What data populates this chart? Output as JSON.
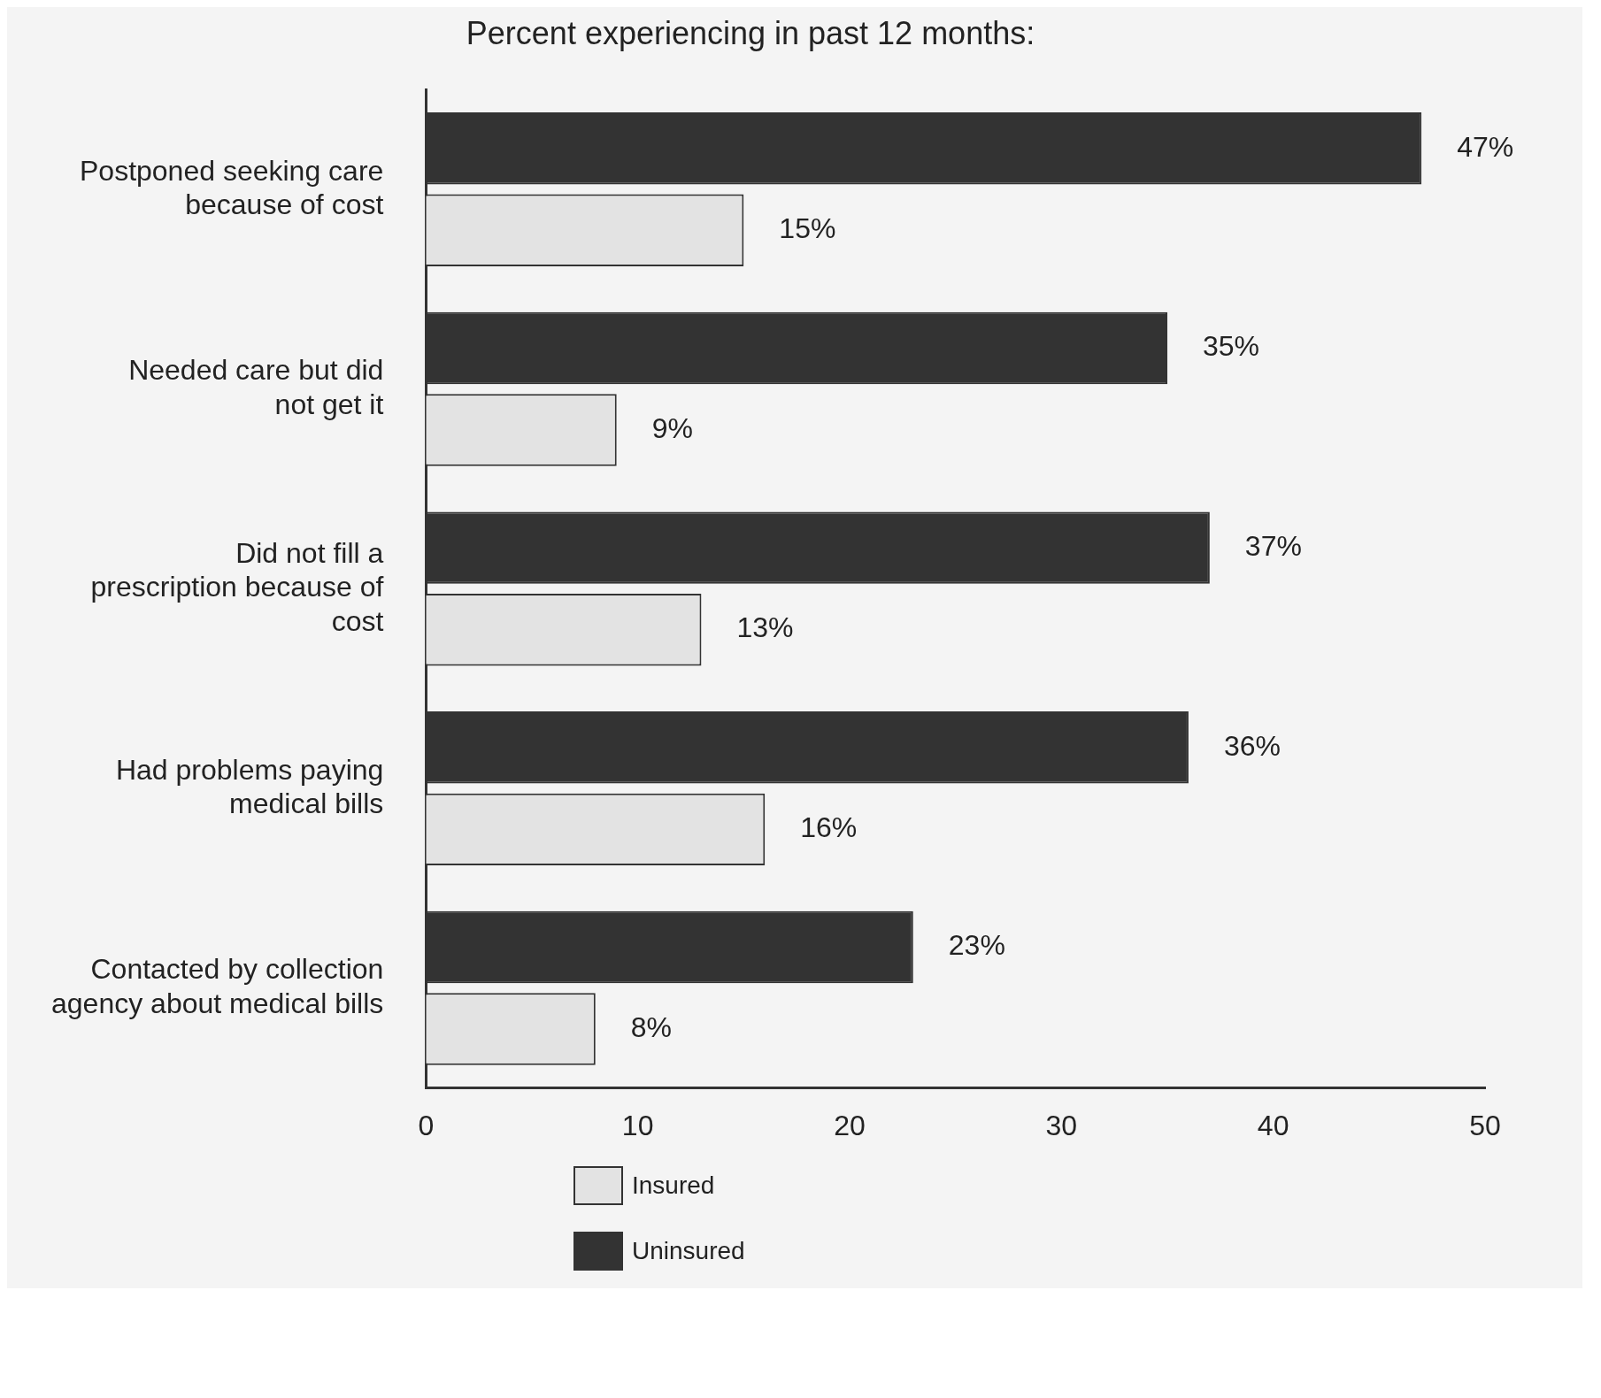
{
  "chart_data": {
    "type": "bar",
    "orientation": "horizontal",
    "title": "Percent experiencing in past 12 months:",
    "categories": [
      "Postponed seeking care because of cost",
      "Needed care but did not get it",
      "Did not fill a prescription because of cost",
      "Had problems paying medical bills",
      "Contacted by collection agency about medical bills"
    ],
    "series": [
      {
        "name": "Uninsured",
        "color": "#333333",
        "values": [
          47,
          35,
          37,
          36,
          23
        ],
        "value_labels": [
          "47%",
          "35%",
          "37%",
          "36%",
          "23%"
        ]
      },
      {
        "name": "Insured",
        "color": "#e3e3e3",
        "values": [
          15,
          9,
          13,
          16,
          8
        ],
        "value_labels": [
          "15%",
          "9%",
          "13%",
          "16%",
          "8%"
        ]
      }
    ],
    "xlim": [
      0,
      50
    ],
    "xticks": [
      0,
      10,
      20,
      30,
      40,
      50
    ],
    "grid": false,
    "legend": "bottom"
  }
}
